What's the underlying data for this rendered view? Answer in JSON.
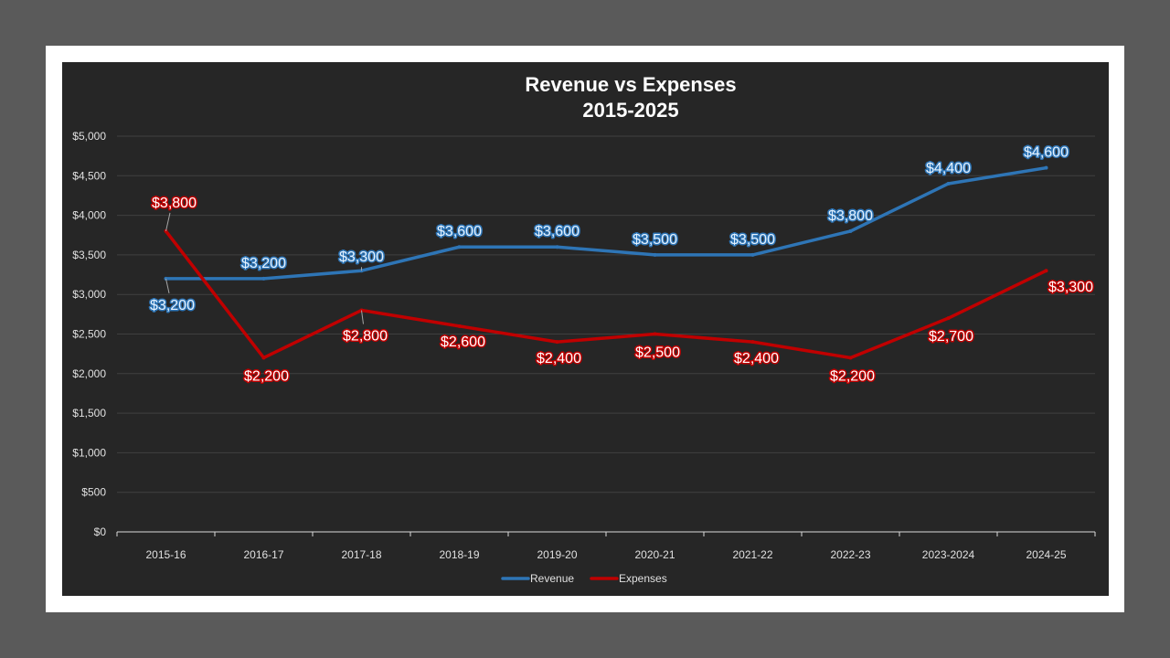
{
  "chart_data": {
    "type": "line",
    "title": "Revenue vs Expenses",
    "subtitle": "2015-2025",
    "categories": [
      "2015-16",
      "2016-17",
      "2017-18",
      "2018-19",
      "2019-20",
      "2020-21",
      "2021-22",
      "2022-23",
      "2023-2024",
      "2024-25"
    ],
    "series": [
      {
        "name": "Revenue",
        "color": "#2e75b6",
        "values": [
          3200,
          3200,
          3300,
          3600,
          3600,
          3500,
          3500,
          3800,
          4400,
          4600
        ],
        "labels": [
          "$3,200",
          "$3,200",
          "$3,300",
          "$3,600",
          "$3,600",
          "$3,500",
          "$3,500",
          "$3,800",
          "$4,400",
          "$4,600"
        ]
      },
      {
        "name": "Expenses",
        "color": "#c00000",
        "values": [
          3800,
          2200,
          2800,
          2600,
          2400,
          2500,
          2400,
          2200,
          2700,
          3300
        ],
        "labels": [
          "$3,800",
          "$2,200",
          "$2,800",
          "$2,600",
          "$2,400",
          "$2,500",
          "$2,400",
          "$2,200",
          "$2,700",
          "$3,300"
        ]
      }
    ],
    "ylim": [
      0,
      5000
    ],
    "yticks": [
      "$0",
      "$500",
      "$1,000",
      "$1,500",
      "$2,000",
      "$2,500",
      "$3,000",
      "$3,500",
      "$4,000",
      "$4,500",
      "$5,000"
    ],
    "grid": true,
    "legend": "bottom",
    "background": "#262626"
  }
}
